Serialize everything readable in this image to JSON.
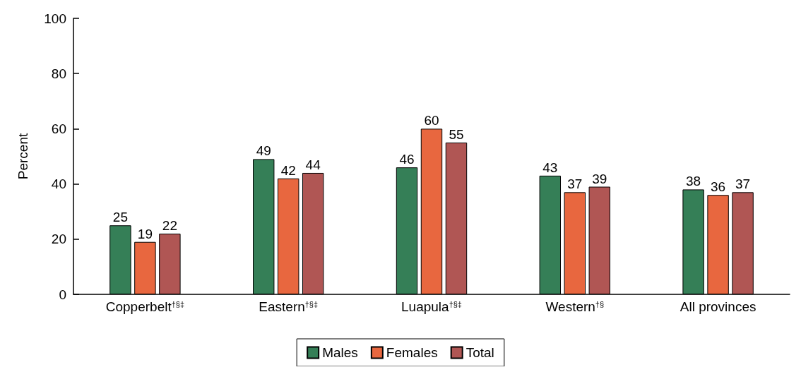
{
  "chart_data": {
    "type": "bar",
    "ylabel": "Percent",
    "categories": [
      "Copperbelt$^{†§‡}$",
      "Eastern$^{†§‡}$",
      "Luapula$^{†§‡}$",
      "Western$^{†§}$",
      "All provinces"
    ],
    "series": [
      {
        "name": "Males",
        "color": "#357f57",
        "values": [
          25,
          49,
          46,
          43,
          38
        ]
      },
      {
        "name": "Females",
        "color": "#e8673f",
        "values": [
          19,
          42,
          60,
          37,
          36
        ]
      },
      {
        "name": "Total",
        "color": "#b05654",
        "values": [
          22,
          44,
          55,
          39,
          37
        ]
      }
    ],
    "ylim": [
      0,
      100
    ],
    "yticks": [
      0,
      20,
      40,
      60,
      80,
      100
    ],
    "data_labels": true,
    "legend": "bottom",
    "grid": false
  }
}
